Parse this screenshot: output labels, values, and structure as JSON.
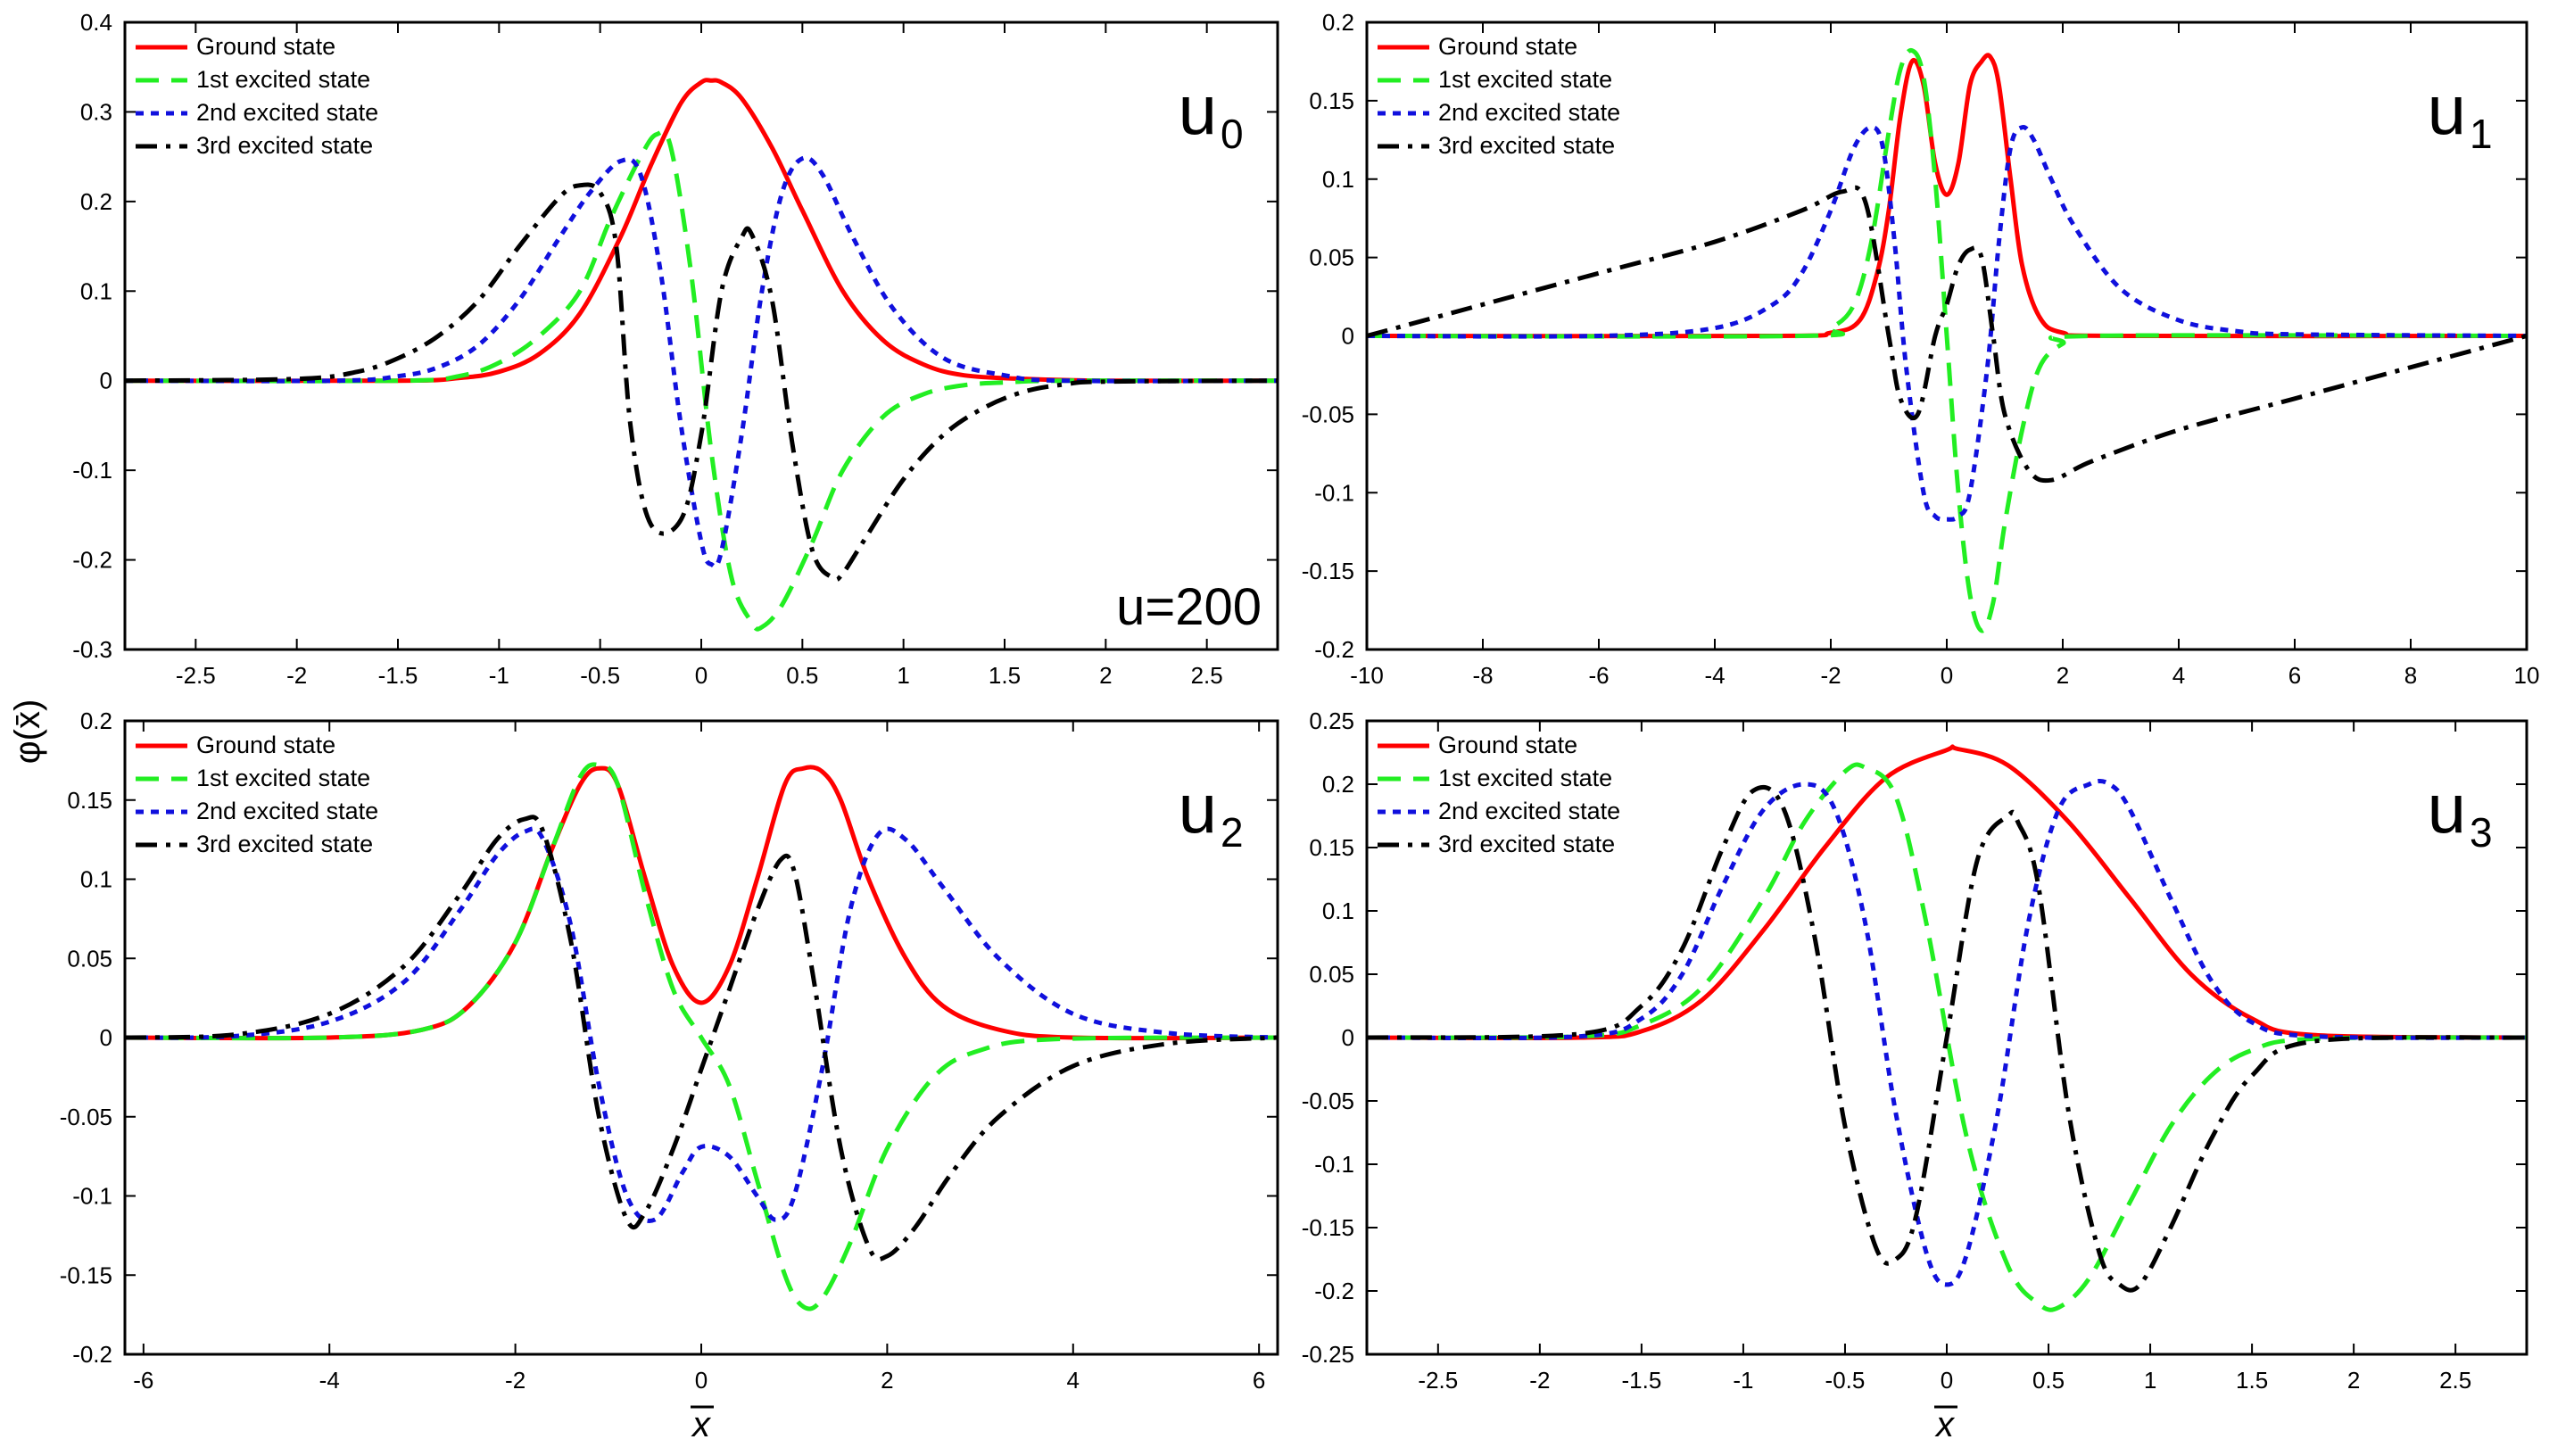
{
  "figure": {
    "ylabel": "φ(x̄)",
    "xlabel": "x",
    "legend": [
      "Ground state",
      "1st excited state",
      "2nd excited state",
      "3rd excited state"
    ],
    "series_colors": [
      "#ff0000",
      "#22ee22",
      "#1010dd",
      "#000000"
    ],
    "series_dash": [
      "solid",
      "dashed",
      "dotted",
      "dash-dot"
    ]
  },
  "chart_data": [
    {
      "type": "line",
      "label_main": "u",
      "label_sub": "0",
      "annotation": "u=200",
      "xlim": [
        -2.85,
        2.85
      ],
      "ylim": [
        -0.3,
        0.4
      ],
      "xticks": [
        -2.5,
        -2,
        -1.5,
        -1,
        -0.5,
        0,
        0.5,
        1,
        1.5,
        2,
        2.5
      ],
      "yticks": [
        -0.3,
        -0.2,
        -0.1,
        0,
        0.1,
        0.2,
        0.3,
        0.4
      ],
      "xticklabels": [
        "-2.5",
        "-2",
        "-1.5",
        "-1",
        "-0.5",
        "0",
        "0.5",
        "1",
        "1.5",
        "2",
        "2.5"
      ],
      "yticklabels": [
        "-0.3",
        "-0.2",
        "-0.1",
        "0",
        "0.1",
        "0.2",
        "0.3",
        "0.4"
      ],
      "series": [
        {
          "name": "Ground state",
          "x": [
            -2.85,
            -1.5,
            -1.2,
            -1.0,
            -0.8,
            -0.6,
            -0.4,
            -0.25,
            -0.1,
            0.0,
            0.05,
            0.1,
            0.2,
            0.35,
            0.5,
            0.7,
            0.9,
            1.1,
            1.3,
            1.6,
            2.0,
            2.85
          ],
          "y": [
            0,
            0,
            0.003,
            0.01,
            0.03,
            0.075,
            0.16,
            0.24,
            0.31,
            0.333,
            0.335,
            0.333,
            0.315,
            0.26,
            0.19,
            0.1,
            0.045,
            0.018,
            0.006,
            0.002,
            0,
            0
          ]
        },
        {
          "name": "1st excited state",
          "x": [
            -2.85,
            -1.5,
            -1.2,
            -1.0,
            -0.8,
            -0.6,
            -0.45,
            -0.3,
            -0.22,
            -0.15,
            -0.05,
            0.05,
            0.15,
            0.25,
            0.3,
            0.4,
            0.55,
            0.7,
            0.9,
            1.1,
            1.3,
            1.5,
            1.8,
            2.85
          ],
          "y": [
            0,
            0,
            0.005,
            0.02,
            0.05,
            0.1,
            0.18,
            0.25,
            0.275,
            0.26,
            0.12,
            -0.08,
            -0.22,
            -0.27,
            -0.275,
            -0.25,
            -0.18,
            -0.1,
            -0.04,
            -0.015,
            -0.005,
            -0.002,
            0,
            0
          ]
        },
        {
          "name": "2nd excited state",
          "x": [
            -2.85,
            -1.8,
            -1.5,
            -1.3,
            -1.1,
            -0.9,
            -0.7,
            -0.55,
            -0.4,
            -0.3,
            -0.2,
            -0.1,
            0.0,
            0.05,
            0.1,
            0.2,
            0.3,
            0.4,
            0.5,
            0.6,
            0.75,
            0.95,
            1.2,
            1.5,
            1.8,
            2.85
          ],
          "y": [
            0,
            0,
            0.005,
            0.015,
            0.04,
            0.09,
            0.16,
            0.21,
            0.245,
            0.23,
            0.12,
            -0.05,
            -0.18,
            -0.205,
            -0.19,
            -0.06,
            0.1,
            0.21,
            0.248,
            0.23,
            0.16,
            0.08,
            0.025,
            0.006,
            0,
            0
          ]
        },
        {
          "name": "3rd excited state",
          "x": [
            -2.85,
            -2.0,
            -1.7,
            -1.5,
            -1.3,
            -1.1,
            -0.9,
            -0.7,
            -0.6,
            -0.5,
            -0.42,
            -0.35,
            -0.25,
            -0.1,
            0.0,
            0.1,
            0.2,
            0.25,
            0.35,
            0.45,
            0.55,
            0.65,
            0.7,
            0.8,
            1.0,
            1.2,
            1.4,
            1.6,
            1.8,
            2.0,
            2.85
          ],
          "y": [
            0,
            0.002,
            0.01,
            0.025,
            0.05,
            0.09,
            0.15,
            0.205,
            0.218,
            0.21,
            0.15,
            -0.05,
            -0.16,
            -0.155,
            -0.06,
            0.1,
            0.16,
            0.163,
            0.09,
            -0.07,
            -0.19,
            -0.22,
            -0.215,
            -0.18,
            -0.11,
            -0.06,
            -0.03,
            -0.012,
            -0.004,
            -0.001,
            0
          ]
        }
      ]
    },
    {
      "type": "line",
      "label_main": "u",
      "label_sub": "1",
      "xlim": [
        -10,
        10
      ],
      "ylim": [
        -0.2,
        0.2
      ],
      "xticks": [
        -10,
        -8,
        -6,
        -4,
        -2,
        0,
        2,
        4,
        6,
        8,
        10
      ],
      "yticks": [
        -0.2,
        -0.15,
        -0.1,
        -0.05,
        0,
        0.05,
        0.1,
        0.15,
        0.2
      ],
      "xticklabels": [
        "-10",
        "-8",
        "-6",
        "-4",
        "-2",
        "0",
        "2",
        "4",
        "6",
        "8",
        "10"
      ],
      "yticklabels": [
        "-0.2",
        "-0.15",
        "-0.1",
        "-0.05",
        "0",
        "0.05",
        "0.1",
        "0.15",
        "0.2"
      ],
      "series": [
        {
          "name": "Ground state",
          "x": [
            -10,
            -3,
            -2,
            -1.5,
            -1.2,
            -1.0,
            -0.8,
            -0.6,
            -0.4,
            -0.2,
            0,
            0.2,
            0.4,
            0.6,
            0.75,
            0.9,
            1.1,
            1.3,
            1.6,
            2.0,
            3.0,
            10
          ],
          "y": [
            0,
            0,
            0.002,
            0.01,
            0.04,
            0.08,
            0.14,
            0.175,
            0.16,
            0.11,
            0.09,
            0.11,
            0.16,
            0.175,
            0.178,
            0.16,
            0.1,
            0.045,
            0.012,
            0.002,
            0,
            0
          ]
        },
        {
          "name": "1st excited state",
          "x": [
            -10,
            -2.5,
            -2.0,
            -1.6,
            -1.3,
            -1.0,
            -0.8,
            -0.6,
            -0.4,
            -0.2,
            0,
            0.2,
            0.4,
            0.6,
            0.8,
            1.0,
            1.3,
            1.6,
            2.0,
            2.5,
            10
          ],
          "y": [
            0,
            0,
            0.005,
            0.02,
            0.06,
            0.13,
            0.17,
            0.182,
            0.165,
            0.1,
            0.0,
            -0.1,
            -0.165,
            -0.188,
            -0.17,
            -0.12,
            -0.06,
            -0.02,
            -0.005,
            0,
            0
          ]
        },
        {
          "name": "2nd excited state",
          "x": [
            -10,
            -6,
            -4,
            -3,
            -2.5,
            -2.0,
            -1.6,
            -1.3,
            -1.1,
            -0.9,
            -0.7,
            -0.4,
            -0.2,
            0,
            0.2,
            0.4,
            0.7,
            0.9,
            1.1,
            1.3,
            1.5,
            1.8,
            2.2,
            3.0,
            4.0,
            5.0,
            6.0,
            10
          ],
          "y": [
            0,
            0,
            0.005,
            0.02,
            0.04,
            0.08,
            0.12,
            0.133,
            0.12,
            0.06,
            -0.02,
            -0.1,
            -0.115,
            -0.117,
            -0.115,
            -0.1,
            -0.02,
            0.06,
            0.12,
            0.133,
            0.125,
            0.1,
            0.07,
            0.03,
            0.01,
            0.003,
            0.001,
            0
          ]
        },
        {
          "name": "3rd excited state",
          "x": [
            -10,
            -8,
            -6,
            -4,
            -2.5,
            -1.8,
            -1.4,
            -1.0,
            -0.8,
            -0.5,
            -0.2,
            0,
            0.2,
            0.4,
            0.6,
            0.8,
            1.0,
            1.4,
            1.8,
            2.5,
            4,
            6,
            8,
            10
          ],
          "y": [
            0,
            0.02,
            0.04,
            0.06,
            0.08,
            0.092,
            0.085,
            0.0,
            -0.04,
            -0.05,
            0.0,
            0.02,
            0.045,
            0.055,
            0.05,
            0.0,
            -0.05,
            -0.085,
            -0.092,
            -0.08,
            -0.06,
            -0.04,
            -0.02,
            0
          ]
        }
      ]
    },
    {
      "type": "line",
      "label_main": "u",
      "label_sub": "2",
      "xlim": [
        -6.2,
        6.2
      ],
      "ylim": [
        -0.2,
        0.2
      ],
      "xticks": [
        -6,
        -4,
        -2,
        0,
        2,
        4,
        6
      ],
      "yticks": [
        -0.2,
        -0.15,
        -0.1,
        -0.05,
        0,
        0.05,
        0.1,
        0.15,
        0.2
      ],
      "xticklabels": [
        "-6",
        "-4",
        "-2",
        "0",
        "2",
        "4",
        "6"
      ],
      "yticklabels": [
        "-0.2",
        "-0.15",
        "-0.1",
        "-0.05",
        "0",
        "0.05",
        "0.1",
        "0.15",
        "0.2"
      ],
      "series": [
        {
          "name": "Ground state",
          "x": [
            -6.2,
            -4,
            -3,
            -2.5,
            -2.0,
            -1.6,
            -1.3,
            -1.1,
            -0.9,
            -0.6,
            -0.3,
            0,
            0.3,
            0.6,
            0.9,
            1.1,
            1.3,
            1.5,
            1.8,
            2.2,
            2.6,
            3.2,
            4,
            6.2
          ],
          "y": [
            0,
            0,
            0.005,
            0.02,
            0.06,
            0.12,
            0.16,
            0.17,
            0.16,
            0.1,
            0.045,
            0.022,
            0.045,
            0.1,
            0.16,
            0.17,
            0.168,
            0.15,
            0.1,
            0.05,
            0.02,
            0.005,
            0,
            0
          ]
        },
        {
          "name": "1st excited state",
          "x": [
            -6.2,
            -4,
            -3,
            -2.5,
            -2.0,
            -1.6,
            -1.3,
            -1.1,
            -0.9,
            -0.6,
            -0.3,
            0,
            0.3,
            0.6,
            0.9,
            1.1,
            1.3,
            1.6,
            2.0,
            2.5,
            3.0,
            3.8,
            6.2
          ],
          "y": [
            0,
            0,
            0.005,
            0.02,
            0.06,
            0.12,
            0.165,
            0.172,
            0.16,
            0.09,
            0.03,
            0.0,
            -0.03,
            -0.09,
            -0.15,
            -0.17,
            -0.165,
            -0.13,
            -0.07,
            -0.025,
            -0.008,
            -0.001,
            0
          ]
        },
        {
          "name": "2nd excited state",
          "x": [
            -6.2,
            -5,
            -4,
            -3.2,
            -2.6,
            -2.2,
            -1.9,
            -1.7,
            -1.4,
            -1.1,
            -0.8,
            -0.5,
            -0.2,
            0,
            0.3,
            0.6,
            0.8,
            1.0,
            1.3,
            1.6,
            1.9,
            2.2,
            2.6,
            3.2,
            4.0,
            5.0,
            6.2
          ],
          "y": [
            0,
            0.001,
            0.01,
            0.035,
            0.08,
            0.115,
            0.13,
            0.125,
            0.07,
            -0.03,
            -0.1,
            -0.115,
            -0.085,
            -0.069,
            -0.075,
            -0.1,
            -0.115,
            -0.1,
            -0.02,
            0.08,
            0.128,
            0.125,
            0.095,
            0.05,
            0.015,
            0.003,
            0
          ]
        },
        {
          "name": "3rd excited state",
          "x": [
            -6.2,
            -5,
            -4,
            -3.2,
            -2.6,
            -2.2,
            -1.9,
            -1.7,
            -1.4,
            -1.1,
            -0.8,
            -0.6,
            -0.3,
            0,
            0.3,
            0.6,
            0.85,
            1.0,
            1.2,
            1.5,
            1.8,
            2.0,
            2.3,
            2.7,
            3.2,
            4,
            5,
            6.2
          ],
          "y": [
            0,
            0.002,
            0.015,
            0.045,
            0.09,
            0.125,
            0.138,
            0.13,
            0.06,
            -0.05,
            -0.115,
            -0.11,
            -0.07,
            -0.02,
            0.03,
            0.08,
            0.112,
            0.105,
            0.04,
            -0.07,
            -0.132,
            -0.138,
            -0.12,
            -0.085,
            -0.05,
            -0.018,
            -0.004,
            0
          ]
        }
      ]
    },
    {
      "type": "line",
      "label_main": "u",
      "label_sub": "3",
      "xlim": [
        -2.85,
        2.85
      ],
      "ylim": [
        -0.25,
        0.25
      ],
      "xticks": [
        -2.5,
        -2,
        -1.5,
        -1,
        -0.5,
        0,
        0.5,
        1,
        1.5,
        2,
        2.5
      ],
      "yticks": [
        -0.25,
        -0.2,
        -0.15,
        -0.1,
        -0.05,
        0,
        0.05,
        0.1,
        0.15,
        0.2,
        0.25
      ],
      "xticklabels": [
        "-2.5",
        "-2",
        "-1.5",
        "-1",
        "-0.5",
        "0",
        "0.5",
        "1",
        "1.5",
        "2",
        "2.5"
      ],
      "yticklabels": [
        "-0.25",
        "-0.2",
        "-0.15",
        "-0.1",
        "-0.05",
        "0",
        "0.05",
        "0.1",
        "0.15",
        "0.2",
        "0.25"
      ],
      "series": [
        {
          "name": "Ground state",
          "x": [
            -2.85,
            -1.8,
            -1.5,
            -1.2,
            -0.9,
            -0.6,
            -0.3,
            0,
            0.05,
            0.3,
            0.6,
            0.9,
            1.2,
            1.5,
            1.8,
            2.85
          ],
          "y": [
            0,
            0,
            0.005,
            0.03,
            0.085,
            0.15,
            0.205,
            0.227,
            0.228,
            0.215,
            0.17,
            0.11,
            0.05,
            0.015,
            0.002,
            0
          ]
        },
        {
          "name": "1st excited state",
          "x": [
            -2.85,
            -1.8,
            -1.5,
            -1.2,
            -0.9,
            -0.7,
            -0.5,
            -0.4,
            -0.25,
            -0.1,
            0.1,
            0.3,
            0.45,
            0.55,
            0.7,
            0.9,
            1.1,
            1.3,
            1.5,
            1.8,
            2.85
          ],
          "y": [
            0,
            0.001,
            0.01,
            0.04,
            0.11,
            0.17,
            0.21,
            0.213,
            0.19,
            0.09,
            -0.08,
            -0.18,
            -0.21,
            -0.213,
            -0.19,
            -0.13,
            -0.07,
            -0.03,
            -0.01,
            -0.001,
            0
          ]
        },
        {
          "name": "2nd excited state",
          "x": [
            -2.85,
            -1.8,
            -1.5,
            -1.3,
            -1.1,
            -0.9,
            -0.7,
            -0.55,
            -0.4,
            -0.25,
            -0.1,
            0.0,
            0.1,
            0.25,
            0.4,
            0.55,
            0.7,
            0.8,
            0.9,
            1.1,
            1.3,
            1.5,
            1.8,
            2.85
          ],
          "y": [
            0,
            0.001,
            0.015,
            0.05,
            0.12,
            0.18,
            0.2,
            0.18,
            0.09,
            -0.06,
            -0.17,
            -0.195,
            -0.17,
            -0.06,
            0.09,
            0.18,
            0.2,
            0.2,
            0.18,
            0.11,
            0.045,
            0.012,
            0.001,
            0
          ]
        },
        {
          "name": "3rd excited state",
          "x": [
            -2.85,
            -1.8,
            -1.5,
            -1.3,
            -1.1,
            -0.95,
            -0.8,
            -0.65,
            -0.5,
            -0.35,
            -0.25,
            -0.15,
            0.0,
            0.15,
            0.3,
            0.35,
            0.45,
            0.6,
            0.75,
            0.85,
            0.95,
            1.1,
            1.3,
            1.5,
            1.8,
            2.85
          ],
          "y": [
            0,
            0.003,
            0.025,
            0.07,
            0.15,
            0.195,
            0.18,
            0.08,
            -0.07,
            -0.165,
            -0.175,
            -0.14,
            0.0,
            0.14,
            0.175,
            0.17,
            0.12,
            -0.06,
            -0.17,
            -0.195,
            -0.195,
            -0.15,
            -0.08,
            -0.03,
            -0.003,
            0
          ]
        }
      ]
    }
  ]
}
